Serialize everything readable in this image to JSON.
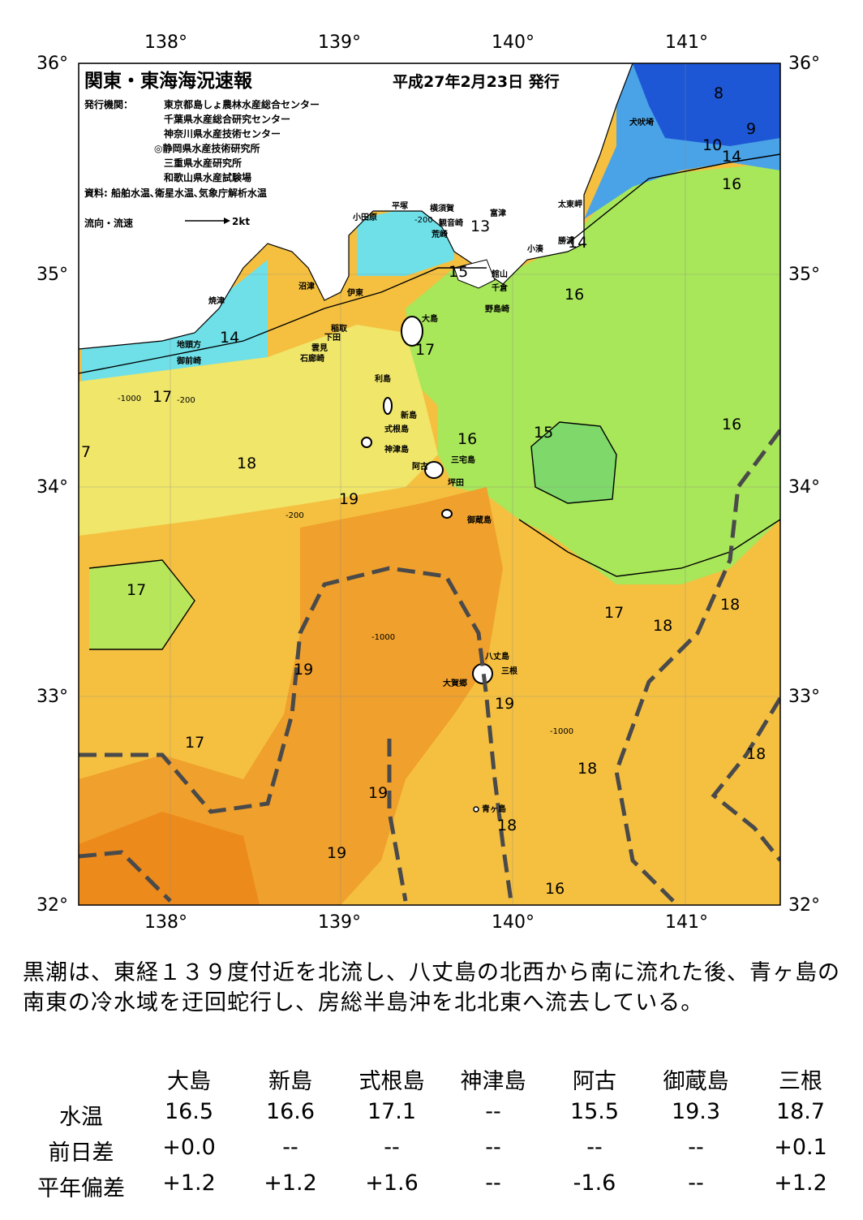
{
  "header": {
    "title": "関東・東海海況速報",
    "date": "平成27年2月23日 発行",
    "publisher_label": "発行機関：",
    "publishers": [
      "東京都島しょ農林水産総合センター",
      "千葉県水産総合研究センター",
      "神奈川県水産技術センター",
      "◎静岡県水産技術研究所",
      "三重県水産研究所",
      "和歌山県水産試験場"
    ],
    "sources": "資料: 船舶水温､衛星水温､気象庁解析水温",
    "legend_flow": "流向・流速",
    "legend_speed": "2kt"
  },
  "axes": {
    "lon": [
      "138°",
      "139°",
      "140°",
      "141°"
    ],
    "lat": [
      "36°",
      "35°",
      "34°",
      "33°",
      "32°"
    ]
  },
  "places": [
    {
      "name": "犬吠埼"
    },
    {
      "name": "太東岬"
    },
    {
      "name": "勝浦"
    },
    {
      "name": "小湊"
    },
    {
      "name": "富津"
    },
    {
      "name": "横須賀"
    },
    {
      "name": "観音崎"
    },
    {
      "name": "平塚"
    },
    {
      "name": "小田原"
    },
    {
      "name": "荒崎"
    },
    {
      "name": "館山"
    },
    {
      "name": "千倉"
    },
    {
      "name": "野島崎"
    },
    {
      "name": "沼津"
    },
    {
      "name": "焼津"
    },
    {
      "name": "伊東"
    },
    {
      "name": "稲取"
    },
    {
      "name": "下田"
    },
    {
      "name": "雲見"
    },
    {
      "name": "石廊崎"
    },
    {
      "name": "地頭方"
    },
    {
      "name": "御前崎"
    },
    {
      "name": "大島"
    },
    {
      "name": "利島"
    },
    {
      "name": "新島"
    },
    {
      "name": "式根島"
    },
    {
      "name": "神津島"
    },
    {
      "name": "三宅島"
    },
    {
      "name": "阿古"
    },
    {
      "name": "坪田"
    },
    {
      "name": "御蔵島"
    },
    {
      "name": "八丈島"
    },
    {
      "name": "三根"
    },
    {
      "name": "大賀郷"
    },
    {
      "name": "青ヶ島"
    }
  ],
  "temperature_labels": [
    "8",
    "9",
    "10",
    "14",
    "16",
    "13",
    "14",
    "15",
    "16",
    "14",
    "17",
    "17",
    "16",
    "15",
    "16",
    "7",
    "18",
    "19",
    "17",
    "17",
    "18",
    "18",
    "19",
    "19",
    "17",
    "18",
    "18",
    "19",
    "18",
    "19",
    "16"
  ],
  "depth_labels": [
    "-200",
    "-1000"
  ],
  "summary": "黒潮は、東経１３９度付近を北流し、八丈島の北西から南に流れた後、青ヶ島の南東の冷水域を迂回蛇行し、房総半島沖を北北東へ流去している。",
  "table": {
    "stations": [
      "大島",
      "新島",
      "式根島",
      "神津島",
      "阿古",
      "御蔵島",
      "三根"
    ],
    "rows": [
      {
        "label": "水温",
        "values": [
          "16.5",
          "16.6",
          "17.1",
          "--",
          "15.5",
          "19.3",
          "18.7"
        ]
      },
      {
        "label": "前日差",
        "values": [
          "+0.0",
          "--",
          "--",
          "--",
          "--",
          "--",
          "+0.1"
        ]
      },
      {
        "label": "平年偏差",
        "values": [
          "+1.2",
          "+1.2",
          "+1.6",
          "--",
          "-1.6",
          "--",
          "+1.2"
        ]
      }
    ]
  },
  "colors": {
    "cold_deep": "#1d57d6",
    "cold": "#4aa3e6",
    "cyan": "#6fe0e8",
    "green_light": "#8ee06e",
    "green": "#a8e65a",
    "yellow": "#f0e66a",
    "yellow_orange": "#f5c040",
    "orange": "#f0a02c",
    "deep_orange": "#ec8a1c",
    "kuroshio_path": "#4a4a4a",
    "land": "#ffffff"
  }
}
